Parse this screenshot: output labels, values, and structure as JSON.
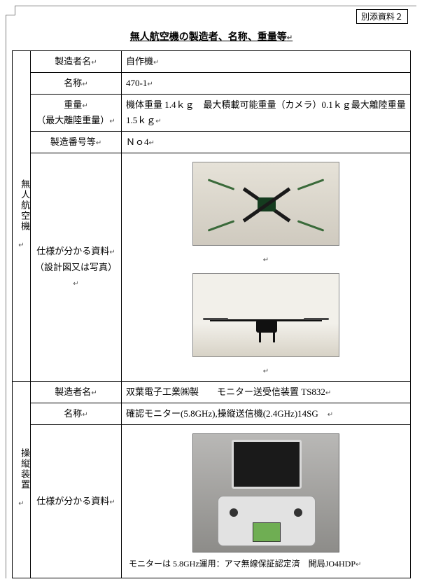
{
  "attachment_label": "別添資料２",
  "title": "無人航空機の製造者、名称、重量等",
  "j": "↵",
  "sections": {
    "uav": {
      "heading": "無人航空機",
      "rows": {
        "manufacturer": {
          "label": "製造者名",
          "value": "自作機"
        },
        "name": {
          "label": "名称",
          "value": "470-1"
        },
        "weight": {
          "label_line1": "重量",
          "label_line2": "（最大離陸重量）",
          "value": "機体重量 1.4ｋｇ　最大積載可能重量（カメラ）0.1ｋｇ最大離陸重量 1.5ｋｇ"
        },
        "serial": {
          "label": "製造番号等",
          "value": "Ｎｏ4"
        },
        "spec": {
          "label_line1": "仕様が分かる資料",
          "label_line2": "（設計図又は写真）",
          "image_alt_top": "drone-top-view-photo",
          "image_alt_side": "drone-side-view-photo"
        }
      }
    },
    "ctrl": {
      "heading": "操縦装置",
      "rows": {
        "manufacturer": {
          "label": "製造者名",
          "value": "双葉電子工業㈱製　　モニター送受信装置 TS832"
        },
        "name": {
          "label": "名称",
          "value": " 確認モニター(5.8GHz),操縦送信機(2.4GHz)14SG　"
        },
        "spec": {
          "label": "仕様が分かる資料",
          "image_alt": "transmitter-with-monitor-photo",
          "caption": "モニターは 5.8GHz運用：アマ無線保証認定済　開局JO4HDP"
        }
      }
    }
  },
  "colors": {
    "border": "#000000",
    "frame": "#808080",
    "background": "#ffffff"
  }
}
